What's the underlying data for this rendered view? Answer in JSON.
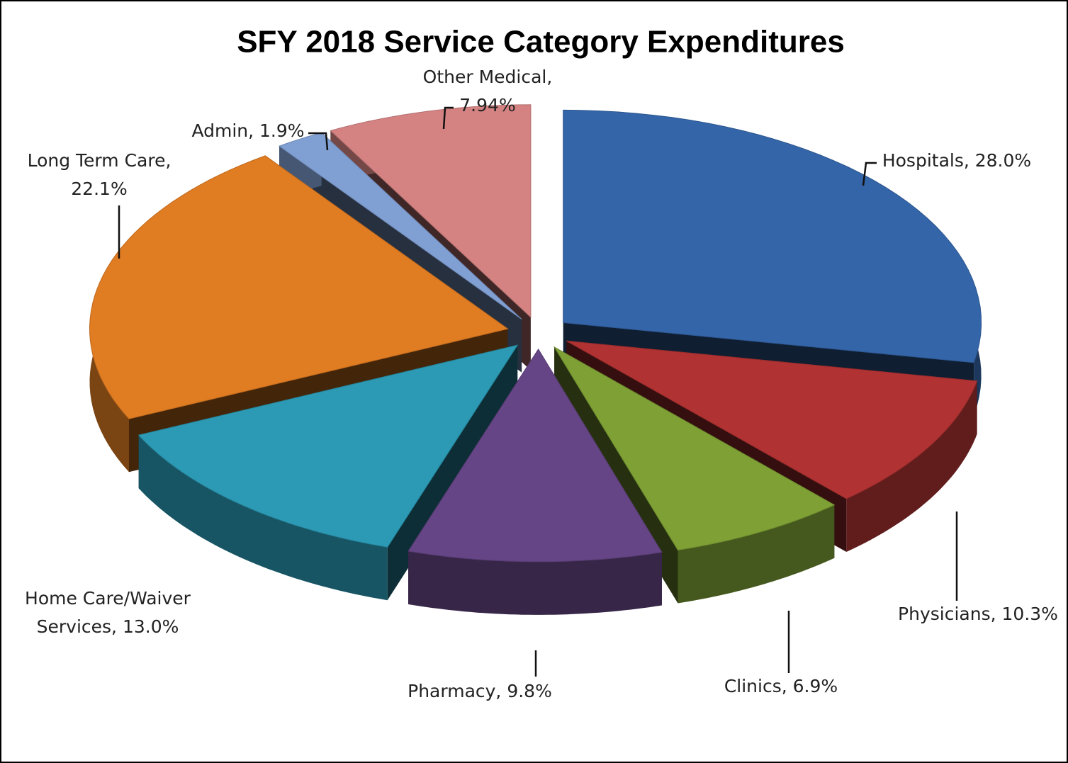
{
  "chart_data": {
    "type": "pie",
    "title": "SFY 2018 Service Category Expenditures",
    "labels": [
      [
        "Hospitals, 28.0%"
      ],
      [
        "Physicians, 10.3%"
      ],
      [
        "Clinics, 6.9%"
      ],
      [
        "Pharmacy, 9.8%"
      ],
      [
        "Home Care/Waiver",
        "Services, 13.0%"
      ],
      [
        "Long Term Care,",
        "22.1%"
      ],
      [
        "Admin, 1.9%"
      ],
      [
        "Other Medical,",
        "7.94%"
      ]
    ],
    "values": [
      28.0,
      10.3,
      6.9,
      9.8,
      13.0,
      22.1,
      1.9,
      7.94
    ],
    "colors": [
      "#3465a8",
      "#b03232",
      "#7ea035",
      "#654585",
      "#2c9ab5",
      "#e07c22",
      "#809fd2",
      "#d48282"
    ]
  }
}
